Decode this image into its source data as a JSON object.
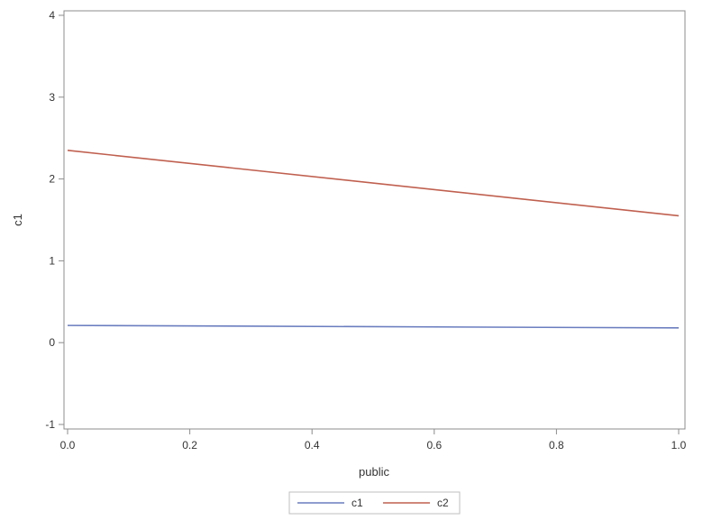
{
  "chart_data": {
    "type": "line",
    "xlabel": "public",
    "ylabel": "c1",
    "xlim": [
      0.0,
      1.0
    ],
    "ylim": [
      -1,
      4
    ],
    "xticks": [
      "0.0",
      "0.2",
      "0.4",
      "0.6",
      "0.8",
      "1.0"
    ],
    "yticks": [
      "-1",
      "0",
      "1",
      "2",
      "3",
      "4"
    ],
    "x": [
      0.0,
      1.0
    ],
    "series": [
      {
        "name": "c1",
        "values": [
          0.21,
          0.18
        ],
        "color": "#6a7dbf"
      },
      {
        "name": "c2",
        "values": [
          2.35,
          1.55
        ],
        "color": "#c0604f"
      }
    ],
    "grid": false,
    "legend_position": "bottom-center"
  }
}
